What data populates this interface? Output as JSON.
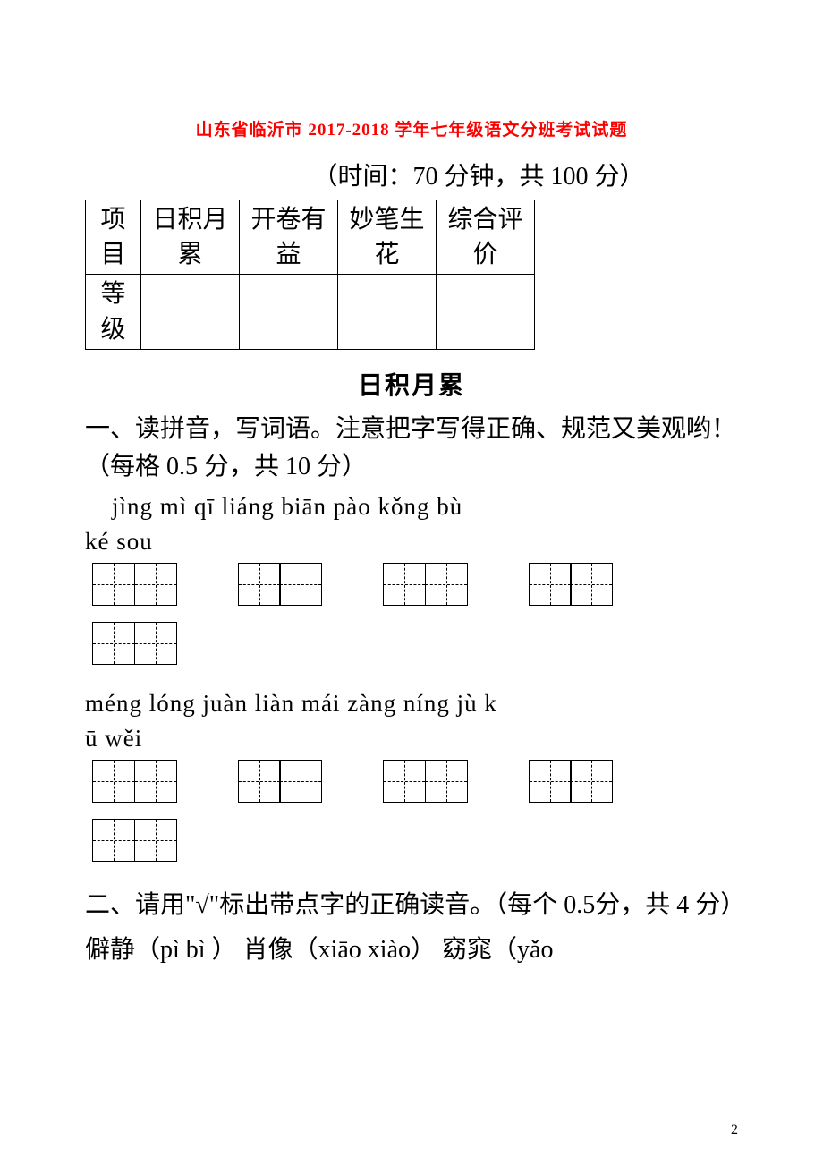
{
  "title": "山东省临沂市 2017-2018 学年七年级语文分班考试试题",
  "subtitle": "（时间：70 分钟，共 100 分）",
  "score_table": {
    "headers": [
      "项目",
      "日积月累",
      "开卷有益",
      "妙笔生花",
      "综合评价"
    ],
    "row_label": "等级"
  },
  "section_heading": "日积月累",
  "q1": {
    "text": "一、读拼音，写词语。注意把字写得正确、规范又美观哟！ （每格 0.5 分，共 10 分）",
    "pinyin_row1": "jìng mì    qī liáng    biān pào   kǒng bù",
    "pinyin_row1b": " ké sou",
    "pinyin_row2": "méng lóng   juàn liàn    mái zàng    níng  jù     k",
    "pinyin_row2b": "ū  wěi"
  },
  "q2": {
    "text": "二、请用\"√\"标出带点字的正确读音。（每个 0.5分，共 4 分）",
    "line1_a": "僻静（",
    "line1_b": "pì bì ",
    "line1_c": "）  肖像（",
    "line1_d": "xiāo  xiào",
    "line1_e": "） 窈窕（",
    "line1_f": "yǎo"
  },
  "page_number": "2",
  "colors": {
    "title_color": "#ff0000",
    "text_color": "#000000",
    "background": "#ffffff",
    "border_color": "#000000"
  },
  "typography": {
    "title_fontsize": 19,
    "body_fontsize": 28,
    "pinyin_fontsize": 27,
    "page_num_fontsize": 16
  },
  "tianzige": {
    "cell_size": 48,
    "border_width": 1.5,
    "cells_per_box": 2,
    "boxes_per_row": 4,
    "box_gap": 68
  }
}
